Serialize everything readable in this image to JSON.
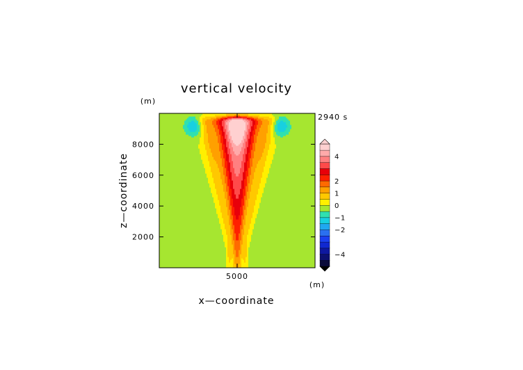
{
  "chart_data": {
    "type": "heatmap",
    "title": "vertical velocity",
    "xlabel": "x—coordinate",
    "ylabel": "z—coordinate",
    "x_unit": "(m)",
    "y_unit": "(m)",
    "time_label": "2940 s",
    "xlim": [
      0,
      10000
    ],
    "ylim": [
      0,
      10000
    ],
    "x_ticks": [
      5000
    ],
    "y_ticks": [
      2000,
      4000,
      6000,
      8000
    ],
    "x_tick_labels": [
      "5000"
    ],
    "y_tick_labels": [
      "2000",
      "4000",
      "6000",
      "8000"
    ],
    "grid": false,
    "field_description": "updraft plume centered at x=5000 m widening with height, peak > 4.5 m/s near z=8900 m; downdraft cores near x=2200 m and x=7800 m at z=9200 m",
    "plume": {
      "center_x": 5000,
      "peak_value": 4.8,
      "peak_z": 8900,
      "top_z": 9750,
      "downdraft_cores": [
        {
          "x": 2200,
          "z": 9200,
          "value": -1.5
        },
        {
          "x": 7800,
          "z": 9200,
          "value": -1.5
        }
      ]
    },
    "colorbar": {
      "levels": [
        -5,
        -4.5,
        -4,
        -3.5,
        -3,
        -2.5,
        -2,
        -1.5,
        -1,
        -0.5,
        0,
        0.5,
        1,
        1.5,
        2,
        2.5,
        3,
        3.5,
        4,
        4.5,
        5
      ],
      "colors": [
        "#0a0a3a",
        "#0c1070",
        "#0e18a0",
        "#1028d0",
        "#1a40f0",
        "#2a70f0",
        "#20a8f0",
        "#18d0e0",
        "#30e0b0",
        "#a6e630",
        "#fff000",
        "#ffc800",
        "#ffa000",
        "#ff6a00",
        "#ff2000",
        "#e8000a",
        "#ff4a4a",
        "#ff8080",
        "#ffaaaa",
        "#ffd0d0"
      ],
      "tick_values": [
        4,
        2,
        1,
        0,
        -1,
        -2,
        -4
      ],
      "tick_labels": [
        "4",
        "2",
        "1",
        "0",
        "−1",
        "−2",
        "−4"
      ],
      "extend": "both"
    }
  }
}
